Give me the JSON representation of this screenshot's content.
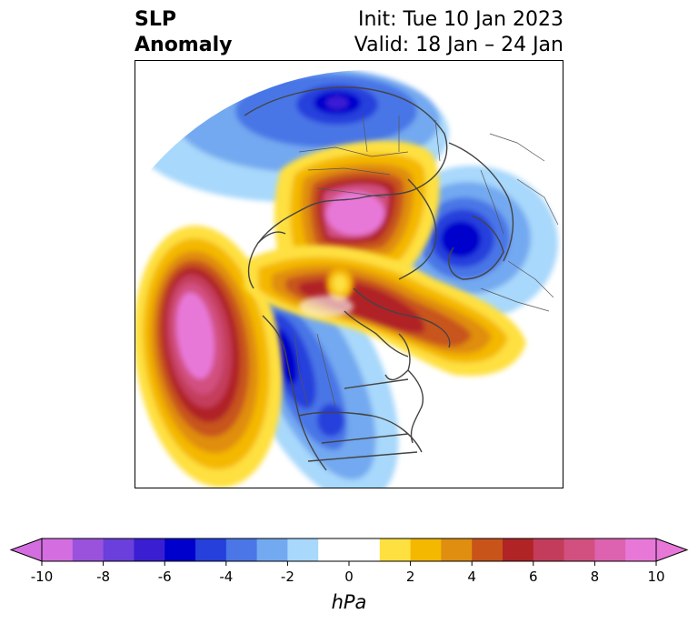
{
  "title": {
    "left_line1": "SLP",
    "left_line2": "Anomaly",
    "right_line1": "Init: Tue 10 Jan 2023",
    "right_line2": "Valid: 18 Jan – 24 Jan"
  },
  "colorbar": {
    "unit": "hPa",
    "tick_labels": [
      "-10",
      "-8",
      "-6",
      "-4",
      "-2",
      "0",
      "2",
      "4",
      "6",
      "8",
      "10"
    ],
    "range": [
      -10,
      10
    ],
    "extend": "both",
    "levels": [
      {
        "from": -10,
        "to": -9,
        "color": "#d46ee0"
      },
      {
        "from": -9,
        "to": -8,
        "color": "#9a52dd"
      },
      {
        "from": -8,
        "to": -7,
        "color": "#6a3fdb"
      },
      {
        "from": -7,
        "to": -6,
        "color": "#3a1fd2"
      },
      {
        "from": -6,
        "to": -5,
        "color": "#0000cc"
      },
      {
        "from": -5,
        "to": -4,
        "color": "#2640dc"
      },
      {
        "from": -4,
        "to": -3,
        "color": "#4a76e6"
      },
      {
        "from": -3,
        "to": -2,
        "color": "#73a9f0"
      },
      {
        "from": -2,
        "to": -1,
        "color": "#a8d8fb"
      },
      {
        "from": -1,
        "to": 1,
        "color": "#ffffff"
      },
      {
        "from": 1,
        "to": 2,
        "color": "#fee040"
      },
      {
        "from": 2,
        "to": 3,
        "color": "#f4b800"
      },
      {
        "from": 3,
        "to": 4,
        "color": "#e08e10"
      },
      {
        "from": 4,
        "to": 5,
        "color": "#c8541a"
      },
      {
        "from": 5,
        "to": 6,
        "color": "#b02426"
      },
      {
        "from": 6,
        "to": 7,
        "color": "#c43c5c"
      },
      {
        "from": 7,
        "to": 8,
        "color": "#d25080"
      },
      {
        "from": 8,
        "to": 9,
        "color": "#dd62b0"
      },
      {
        "from": 9,
        "to": 10,
        "color": "#e878d8"
      }
    ],
    "under_color": "#d46ee0",
    "over_color": "#e878d8"
  },
  "map": {
    "projection": "north-polar-stereographic",
    "field": "sea-level-pressure-anomaly",
    "coastline_color": "#444444"
  }
}
